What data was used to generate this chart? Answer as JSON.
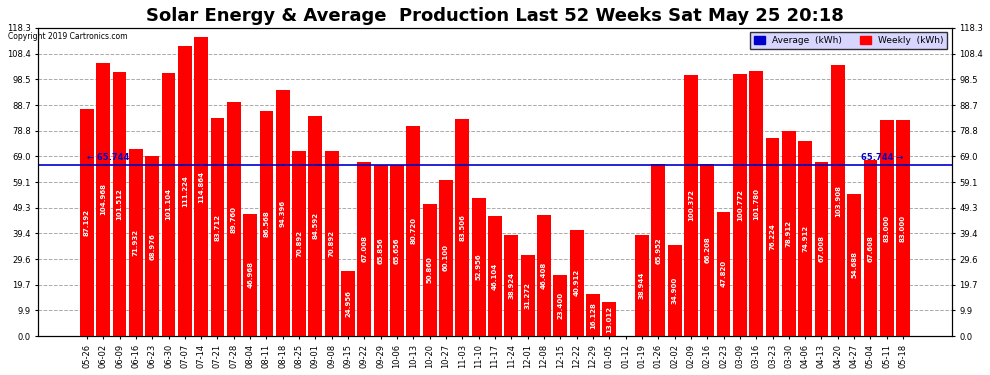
{
  "title": "Solar Energy & Average  Production Last 52 Weeks Sat May 25 20:18",
  "copyright": "Copyright 2019 Cartronics.com",
  "average_line": 65.744,
  "average_label": "65.744",
  "bar_color": "#FF0000",
  "average_line_color": "#0000CD",
  "background_color": "#FFFFFF",
  "grid_color": "#AAAAAA",
  "ylim": [
    0,
    118.3
  ],
  "yticks": [
    0.0,
    9.9,
    19.7,
    29.6,
    39.4,
    49.3,
    59.1,
    69.0,
    78.8,
    88.7,
    98.5,
    108.4,
    118.3
  ],
  "legend_avg_color": "#0000CD",
  "legend_weekly_color": "#FF0000",
  "categories": [
    "05-26",
    "06-02",
    "06-09",
    "06-16",
    "06-23",
    "06-30",
    "07-07",
    "07-14",
    "07-21",
    "07-28",
    "08-04",
    "08-11",
    "08-18",
    "08-25",
    "09-01",
    "09-08",
    "09-15",
    "09-22",
    "09-29",
    "10-06",
    "10-13",
    "10-20",
    "10-27",
    "11-03",
    "11-10",
    "11-17",
    "11-24",
    "12-01",
    "12-08",
    "12-15",
    "12-22",
    "12-29",
    "01-05",
    "01-12",
    "01-19",
    "01-26",
    "02-02",
    "02-09",
    "02-16",
    "02-23",
    "03-09",
    "03-16",
    "03-23",
    "03-30",
    "04-06",
    "04-13",
    "04-20",
    "04-27",
    "05-04",
    "05-11",
    "05-18"
  ],
  "values": [
    87.192,
    104.968,
    101.512,
    71.932,
    68.976,
    101.104,
    111.224,
    114.864,
    83.712,
    89.76,
    46.968,
    86.568,
    94.396,
    70.892,
    84.592,
    70.892,
    24.956,
    67.008,
    65.856,
    65.656,
    80.72,
    50.86,
    60.1,
    83.506,
    52.956,
    46.104,
    38.924,
    31.272,
    46.408,
    23.4,
    40.912,
    16.128,
    13.012,
    0.0,
    38.944,
    65.952,
    34.9,
    100.372,
    66.208,
    47.82,
    100.772,
    101.78,
    76.224,
    78.912,
    74.912,
    67.008,
    103.908,
    54.688,
    67.608,
    83.0,
    83.0
  ],
  "title_fontsize": 13,
  "tick_fontsize": 6.0,
  "value_fontsize": 5.0,
  "figsize": [
    9.9,
    3.75
  ],
  "dpi": 100
}
